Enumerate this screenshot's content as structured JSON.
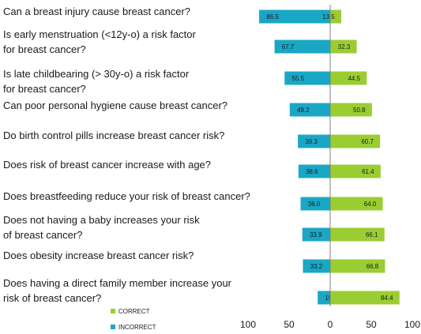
{
  "chart_data": {
    "type": "bar",
    "orientation": "horizontal-diverging",
    "title": "",
    "xlabel": "",
    "ylabel": "",
    "xlim": [
      -100,
      100
    ],
    "x_tick_labels": [
      "100",
      "50",
      "0",
      "50",
      "100"
    ],
    "grid": false,
    "legend_placement": "bottom-left",
    "categories": [
      "Can a breast injury cause breast cancer?",
      "Is early menstruation (<12y-o) a risk factor for breast cancer?",
      "Is late childbearing (> 30y-o) a  risk factor for breast cancer?",
      "Can poor personal hygiene cause breast cancer?",
      "Do birth control pills increase breast cancer risk?",
      "Does risk of  breast cancer increase with age?",
      "Does breastfeeding reduce your risk of breast cancer?",
      "Does not having a baby increases your  risk of breast cancer?",
      "Does obesity increase breast cancer risk?",
      "Does having a direct family member increase your risk of breast cancer?"
    ],
    "category_lines": [
      [
        "Can a breast injury cause breast cancer?"
      ],
      [
        "Is early menstruation (<12y-o) a risk factor",
        "for breast cancer?"
      ],
      [
        "Is late childbearing (> 30y-o) a  risk factor",
        "for breast cancer?"
      ],
      [
        "Can poor personal hygiene cause breast cancer?"
      ],
      [
        "Do birth control pills increase breast cancer risk?"
      ],
      [
        "Does risk of  breast cancer increase with age?"
      ],
      [
        "Does breastfeeding reduce your risk of breast cancer?"
      ],
      [
        "Does not having a baby increases your  risk",
        "of breast cancer?"
      ],
      [
        " Does obesity increase breast cancer risk?"
      ],
      [
        "Does having a direct family member increase your",
        "risk of breast cancer?"
      ]
    ],
    "series": [
      {
        "name": "CORRECT",
        "color": "#9acd32",
        "values": [
          13.5,
          32.3,
          44.5,
          50.8,
          60.7,
          61.4,
          64.0,
          66.1,
          66.8,
          84.4
        ],
        "value_labels": [
          "13.5",
          "32.3",
          "44.5",
          "50.8",
          "60.7",
          "61.4",
          "64.0",
          "66.1",
          "66.8",
          "84.4"
        ]
      },
      {
        "name": "INCORRECT",
        "color": "#1aa7c6",
        "values": [
          86.5,
          67.7,
          55.5,
          49.2,
          39.3,
          38.6,
          36.0,
          33.9,
          33.2,
          15.2
        ],
        "value_labels": [
          "86.5",
          "67.7",
          "55.5",
          "49.2",
          "39.3",
          "38.6",
          "36.0",
          "33.9",
          "33.2",
          "15.2"
        ]
      }
    ]
  }
}
